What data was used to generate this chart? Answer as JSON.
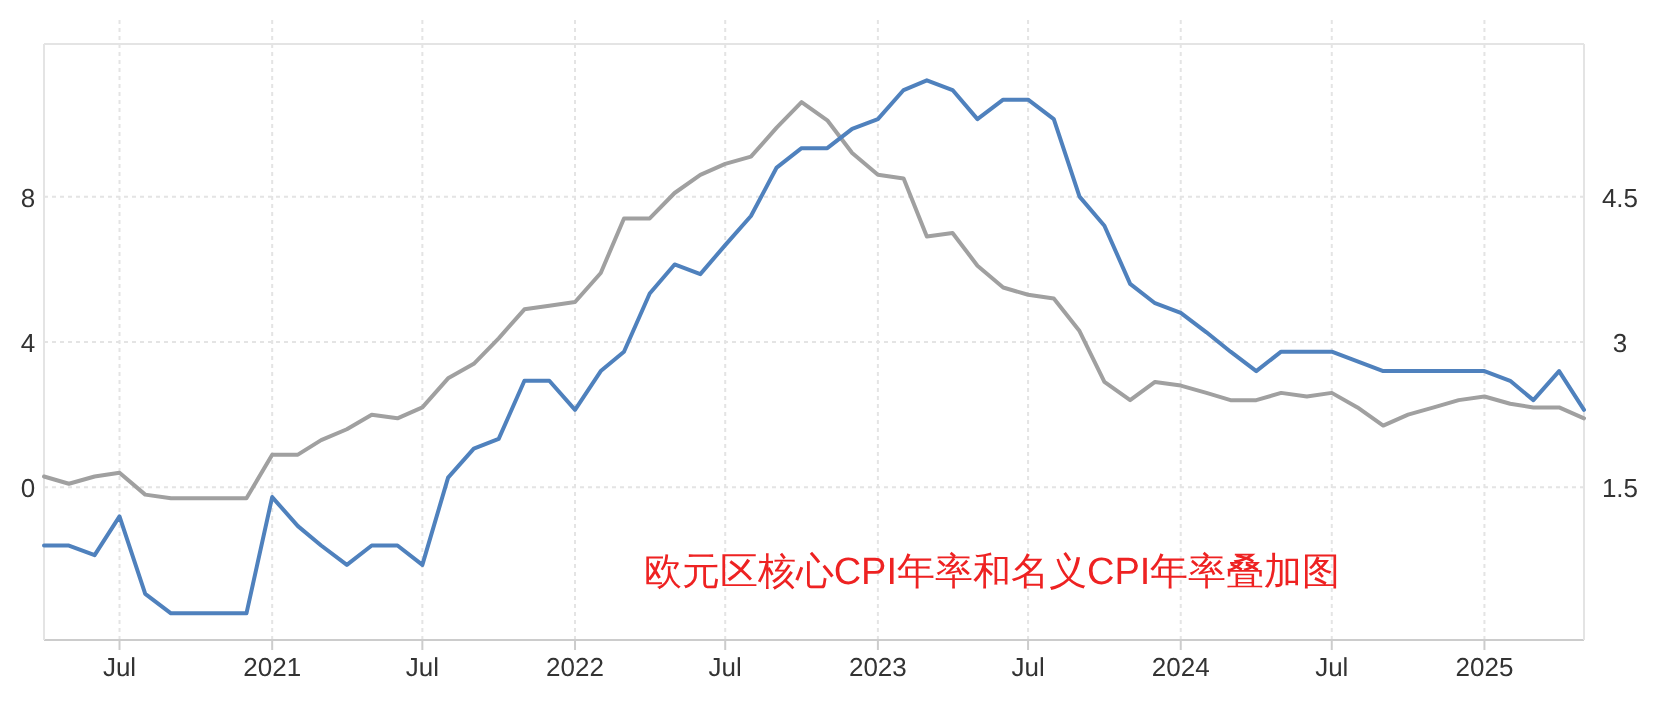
{
  "chart_data": {
    "type": "line",
    "annotations": [
      "欧元区核心CPI年率和名义CPI年率叠加图"
    ],
    "x": [
      "2020-04",
      "2020-05",
      "2020-06",
      "2020-07",
      "2020-08",
      "2020-09",
      "2020-10",
      "2020-11",
      "2020-12",
      "2021-01",
      "2021-02",
      "2021-03",
      "2021-04",
      "2021-05",
      "2021-06",
      "2021-07",
      "2021-08",
      "2021-09",
      "2021-10",
      "2021-11",
      "2021-12",
      "2022-01",
      "2022-02",
      "2022-03",
      "2022-04",
      "2022-05",
      "2022-06",
      "2022-07",
      "2022-08",
      "2022-09",
      "2022-10",
      "2022-11",
      "2022-12",
      "2023-01",
      "2023-02",
      "2023-03",
      "2023-04",
      "2023-05",
      "2023-06",
      "2023-07",
      "2023-08",
      "2023-09",
      "2023-10",
      "2023-11",
      "2023-12",
      "2024-01",
      "2024-02",
      "2024-03",
      "2024-04",
      "2024-05",
      "2024-06",
      "2024-07",
      "2024-08",
      "2024-09",
      "2024-10",
      "2024-11",
      "2024-12",
      "2025-01",
      "2025-02",
      "2025-03",
      "2025-04",
      "2025-05"
    ],
    "series": [
      {
        "color": "#a0a0a0",
        "axis": "y",
        "values": [
          0.3,
          0.1,
          0.3,
          0.4,
          -0.2,
          -0.3,
          -0.3,
          -0.3,
          -0.3,
          0.9,
          0.9,
          1.3,
          1.6,
          2.0,
          1.9,
          2.2,
          3.0,
          3.4,
          4.1,
          4.9,
          5.0,
          5.1,
          5.9,
          7.4,
          7.4,
          8.1,
          8.6,
          8.9,
          9.1,
          9.9,
          10.6,
          10.1,
          9.2,
          8.6,
          8.5,
          6.9,
          7.0,
          6.1,
          5.5,
          5.3,
          5.2,
          4.3,
          2.9,
          2.4,
          2.9,
          2.8,
          2.6,
          2.4,
          2.4,
          2.6,
          2.5,
          2.6,
          2.2,
          1.7,
          2.0,
          2.2,
          2.4,
          2.5,
          2.3,
          2.2,
          2.2,
          1.9
        ]
      },
      {
        "color": "#4f81bd",
        "axis": "y2",
        "values": [
          0.9,
          0.9,
          0.8,
          1.2,
          0.4,
          0.2,
          0.2,
          0.2,
          0.2,
          1.4,
          1.1,
          0.9,
          0.7,
          0.9,
          0.9,
          0.7,
          1.6,
          1.9,
          2.0,
          2.6,
          2.6,
          2.3,
          2.7,
          2.9,
          3.5,
          3.8,
          3.7,
          4.0,
          4.3,
          4.8,
          5.0,
          5.0,
          5.2,
          5.3,
          5.6,
          5.7,
          5.6,
          5.3,
          5.5,
          5.5,
          5.3,
          4.5,
          4.2,
          3.6,
          3.4,
          3.3,
          3.1,
          2.9,
          2.7,
          2.9,
          2.9,
          2.9,
          2.8,
          2.7,
          2.7,
          2.7,
          2.7,
          2.7,
          2.6,
          2.4,
          2.7,
          2.3
        ]
      }
    ],
    "xlim": [
      "2020-04-01",
      "2025-05-01"
    ],
    "xticks": [
      {
        "value": "2020-07",
        "label": "Jul"
      },
      {
        "value": "2021-01",
        "label": "2021"
      },
      {
        "value": "2021-07",
        "label": "Jul"
      },
      {
        "value": "2022-01",
        "label": "2022"
      },
      {
        "value": "2022-07",
        "label": "Jul"
      },
      {
        "value": "2023-01",
        "label": "2023"
      },
      {
        "value": "2023-07",
        "label": "Jul"
      },
      {
        "value": "2024-01",
        "label": "2024"
      },
      {
        "value": "2024-07",
        "label": "Jul"
      },
      {
        "value": "2025-01",
        "label": "2025"
      }
    ],
    "ylim": [
      -4.2,
      12.2
    ],
    "yticks": [
      0,
      4,
      8
    ],
    "y2lim": [
      -0.075,
      6.075
    ],
    "y2ticks": [
      1.5,
      3,
      4.5
    ],
    "grid": true,
    "line_style": "solid"
  }
}
